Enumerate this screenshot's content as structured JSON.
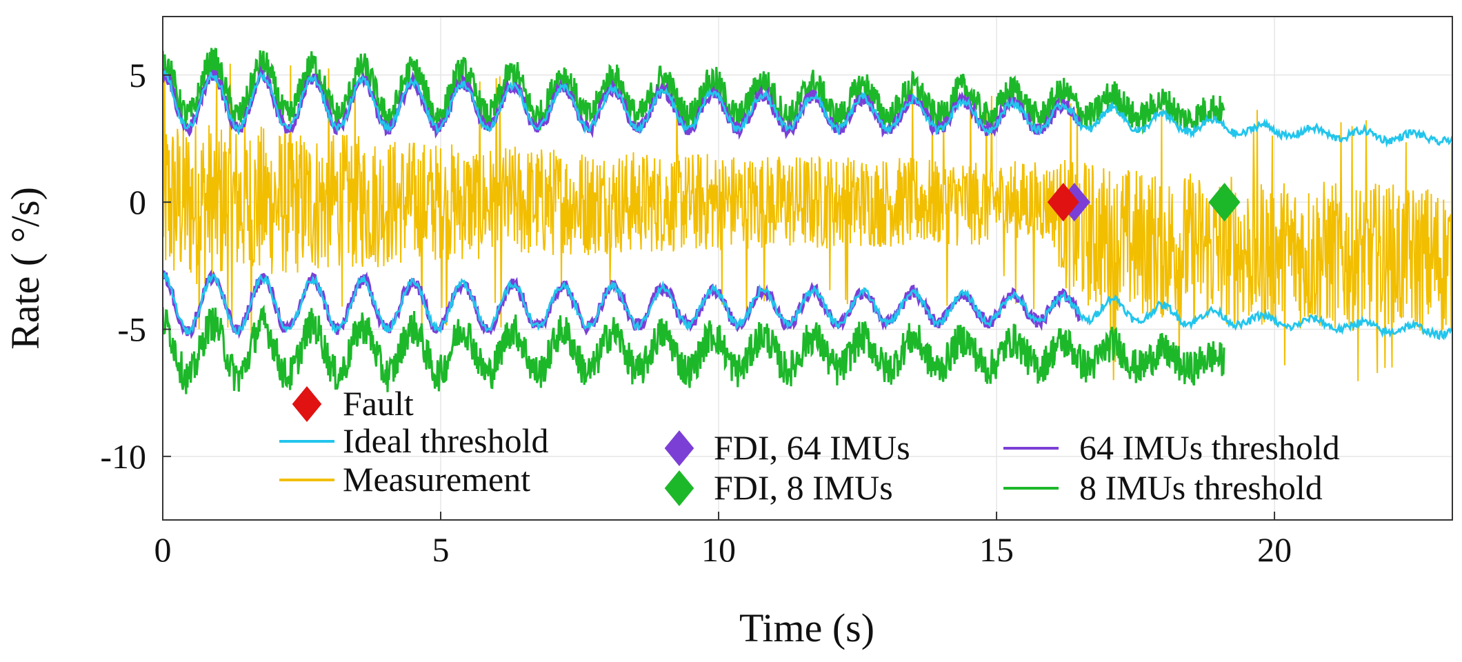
{
  "chart_data": {
    "type": "line",
    "title": "",
    "xlabel": "Time (s)",
    "ylabel": "Rate ( °/s)",
    "xlim": [
      0,
      23.2
    ],
    "ylim": [
      -12.5,
      7.3
    ],
    "xticks": [
      0,
      5,
      10,
      15,
      20
    ],
    "xtick_labels": [
      "0",
      "5",
      "10",
      "15",
      "20"
    ],
    "yticks": [
      5,
      0,
      -5,
      -10
    ],
    "ytick_labels": [
      "5",
      "0",
      "-5",
      "-10"
    ],
    "grid": true,
    "legend_position": "bottom, inside axes",
    "series": [
      {
        "name": "Measurement",
        "kind": "noise_band",
        "color": "#F2BE00",
        "x": [
          0,
          1,
          2,
          3,
          4,
          5,
          6,
          7,
          8,
          9,
          10,
          11,
          12,
          13,
          14,
          15,
          16,
          16.3,
          17,
          18,
          19,
          20,
          21,
          22,
          23.2
        ],
        "upper": [
          3.5,
          3.3,
          3.0,
          2.8,
          2.6,
          2.4,
          2.3,
          2.2,
          2.1,
          2.0,
          2.0,
          1.9,
          1.9,
          1.8,
          1.8,
          1.7,
          1.6,
          1.9,
          1.5,
          1.3,
          1.2,
          1.0,
          0.9,
          0.8,
          0.7
        ],
        "lower": [
          -3.5,
          -3.3,
          -3.0,
          -2.8,
          -2.6,
          -2.4,
          -2.3,
          -2.2,
          -2.1,
          -2.0,
          -2.0,
          -1.9,
          -1.9,
          -1.8,
          -1.8,
          -1.7,
          -1.6,
          -4.0,
          -4.4,
          -4.7,
          -4.9,
          -5.0,
          -5.1,
          -5.2,
          -5.3
        ]
      },
      {
        "name": "Ideal threshold",
        "color": "#22C5EC",
        "x": [
          0,
          17,
          18,
          19,
          20,
          21,
          22,
          23.2
        ],
        "upper_mean": [
          4.0,
          3.3,
          3.1,
          2.95,
          2.8,
          2.7,
          2.6,
          2.5
        ],
        "lower_mean": [
          -4.0,
          -4.2,
          -4.4,
          -4.55,
          -4.7,
          -4.8,
          -4.95,
          -5.1
        ],
        "oscillation_amplitude": [
          1.1,
          0.9,
          0.7,
          0.55,
          0.45,
          0.35,
          0.25,
          0.2,
          0.15
        ],
        "oscillation_period": 0.9
      },
      {
        "name": "64 IMUs threshold",
        "color": "#7B3FD6",
        "x_end": 16.5
      },
      {
        "name": "8 IMUs threshold",
        "color": "#1DB82A",
        "x": [
          0,
          19.1
        ],
        "upper_offset": 0.5,
        "lower_offset": -1.8,
        "x_end": 19.1
      }
    ],
    "markers": [
      {
        "name": "Fault",
        "x": 16.2,
        "y": 0,
        "color": "#E01212"
      },
      {
        "name": "FDI, 64 IMUs",
        "x": 16.4,
        "y": 0,
        "color": "#7B3FD6"
      },
      {
        "name": "FDI, 8 IMUs",
        "x": 19.1,
        "y": 0,
        "color": "#1DB82A"
      }
    ],
    "legend": [
      {
        "label": "Fault",
        "kind": "diamond",
        "color": "#E01212"
      },
      {
        "label": "Ideal threshold",
        "kind": "line",
        "color": "#22C5EC"
      },
      {
        "label": "Measurement",
        "kind": "line",
        "color": "#F2BE00"
      },
      {
        "label": "FDI, 64 IMUs",
        "kind": "diamond",
        "color": "#7B3FD6"
      },
      {
        "label": "FDI, 8 IMUs",
        "kind": "diamond",
        "color": "#1DB82A"
      },
      {
        "label": "64 IMUs threshold",
        "kind": "line",
        "color": "#7B3FD6"
      },
      {
        "label": "8 IMUs threshold",
        "kind": "line",
        "color": "#1DB82A"
      }
    ]
  }
}
